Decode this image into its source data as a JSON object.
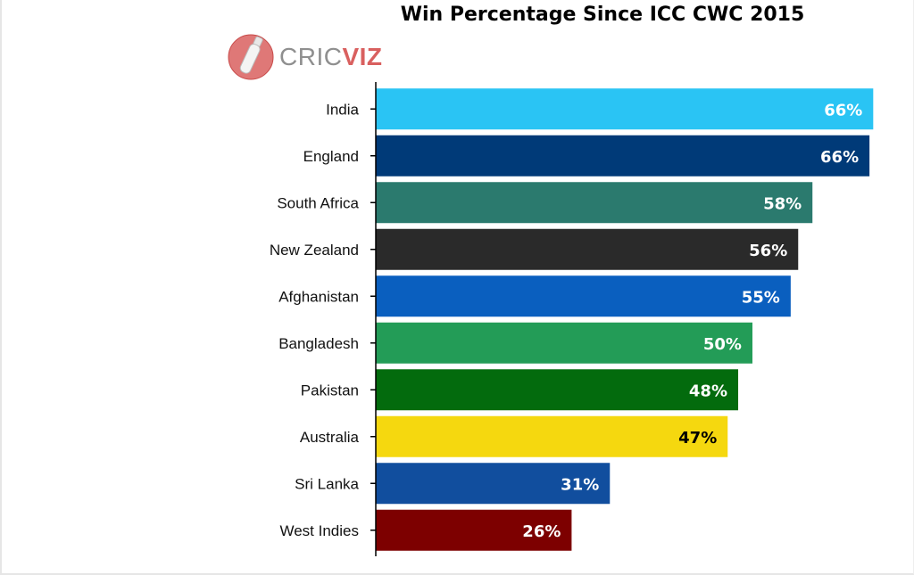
{
  "logo": {
    "name": "cricviz-logo",
    "text_part1": "CRIC",
    "text_part2": "VIZ",
    "colors": {
      "grey": "#8f8f8f",
      "red": "#d9605f"
    }
  },
  "chart_data": {
    "type": "bar",
    "orientation": "horizontal",
    "title": "Win Percentage Since ICC CWC 2015",
    "xlabel": "",
    "ylabel": "",
    "xlim": [
      0,
      66.5
    ],
    "grid": false,
    "legend": "none",
    "categories": [
      "India",
      "England",
      "South Africa",
      "New Zealand",
      "Afghanistan",
      "Bangladesh",
      "Pakistan",
      "Australia",
      "Sri Lanka",
      "West Indies"
    ],
    "values": [
      66.3,
      65.8,
      58.2,
      56.3,
      55.3,
      50.2,
      48.3,
      46.9,
      31.2,
      26.1
    ],
    "value_labels": [
      "66%",
      "66%",
      "58%",
      "56%",
      "55%",
      "50%",
      "48%",
      "47%",
      "31%",
      "26%"
    ],
    "colors": [
      "#2ac4f4",
      "#003a78",
      "#2b7a6e",
      "#2a2a2a",
      "#0a5fbf",
      "#239c57",
      "#036b0d",
      "#f5d80f",
      "#114e9e",
      "#7d0000"
    ],
    "label_colors": [
      "#ffffff",
      "#ffffff",
      "#ffffff",
      "#ffffff",
      "#ffffff",
      "#ffffff",
      "#ffffff",
      "#000000",
      "#ffffff",
      "#ffffff"
    ]
  }
}
